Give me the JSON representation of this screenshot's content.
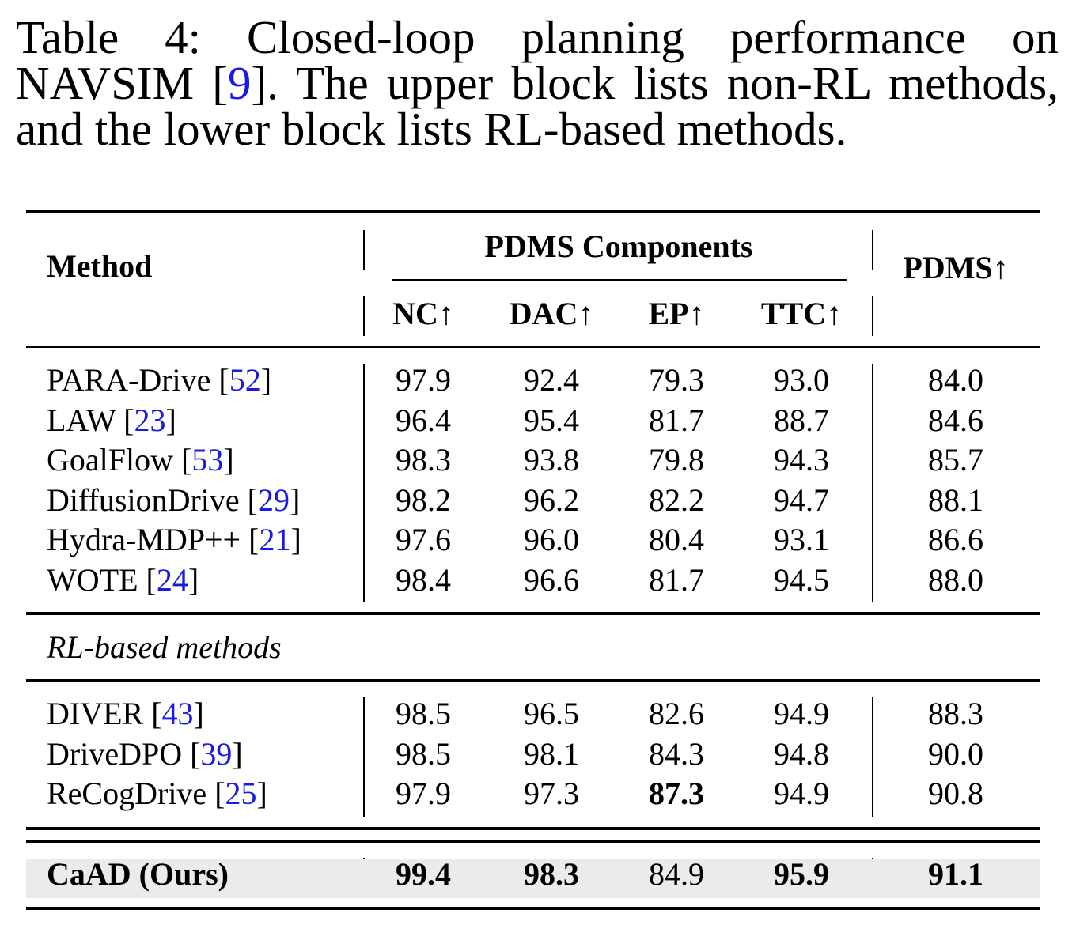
{
  "caption": {
    "label": "Table 4:",
    "text_before_ref": " Closed-loop planning performance on NAVSIM [",
    "ref": "9",
    "text_after_ref": "]. The upper block lists non-RL methods, and the lower block lists RL-based methods."
  },
  "header": {
    "method": "Method",
    "group": "PDMS Components",
    "cols": [
      "NC↑",
      "DAC↑",
      "EP↑",
      "TTC↑"
    ],
    "pdms": "PDMS↑"
  },
  "group_label": "RL-based methods",
  "rows_upper": [
    {
      "name": "PARA-Drive",
      "ref": "52",
      "nc": "97.9",
      "dac": "92.4",
      "ep": "79.3",
      "ttc": "93.0",
      "pdms": "84.0"
    },
    {
      "name": "LAW",
      "ref": "23",
      "nc": "96.4",
      "dac": "95.4",
      "ep": "81.7",
      "ttc": "88.7",
      "pdms": "84.6"
    },
    {
      "name": "GoalFlow",
      "ref": "53",
      "nc": "98.3",
      "dac": "93.8",
      "ep": "79.8",
      "ttc": "94.3",
      "pdms": "85.7"
    },
    {
      "name": "DiffusionDrive",
      "ref": "29",
      "nc": "98.2",
      "dac": "96.2",
      "ep": "82.2",
      "ttc": "94.7",
      "pdms": "88.1"
    },
    {
      "name": "Hydra-MDP++",
      "ref": "21",
      "nc": "97.6",
      "dac": "96.0",
      "ep": "80.4",
      "ttc": "93.1",
      "pdms": "86.6"
    },
    {
      "name": "WOTE",
      "ref": "24",
      "nc": "98.4",
      "dac": "96.6",
      "ep": "81.7",
      "ttc": "94.5",
      "pdms": "88.0"
    }
  ],
  "rows_rl": [
    {
      "name": "DIVER",
      "ref": "43",
      "nc": "98.5",
      "dac": "96.5",
      "ep": "82.6",
      "ttc": "94.9",
      "pdms": "88.3"
    },
    {
      "name": "DriveDPO",
      "ref": "39",
      "nc": "98.5",
      "dac": "98.1",
      "ep": "84.3",
      "ttc": "94.8",
      "pdms": "90.0"
    },
    {
      "name": "ReCogDrive",
      "ref": "25",
      "nc": "97.9",
      "dac": "97.3",
      "ep": "87.3",
      "ttc": "94.9",
      "pdms": "90.8"
    }
  ],
  "ours": {
    "name": "CaAD (Ours)",
    "nc": "99.4",
    "dac": "98.3",
    "ep": "84.9",
    "ttc": "95.9",
    "pdms": "91.1"
  }
}
